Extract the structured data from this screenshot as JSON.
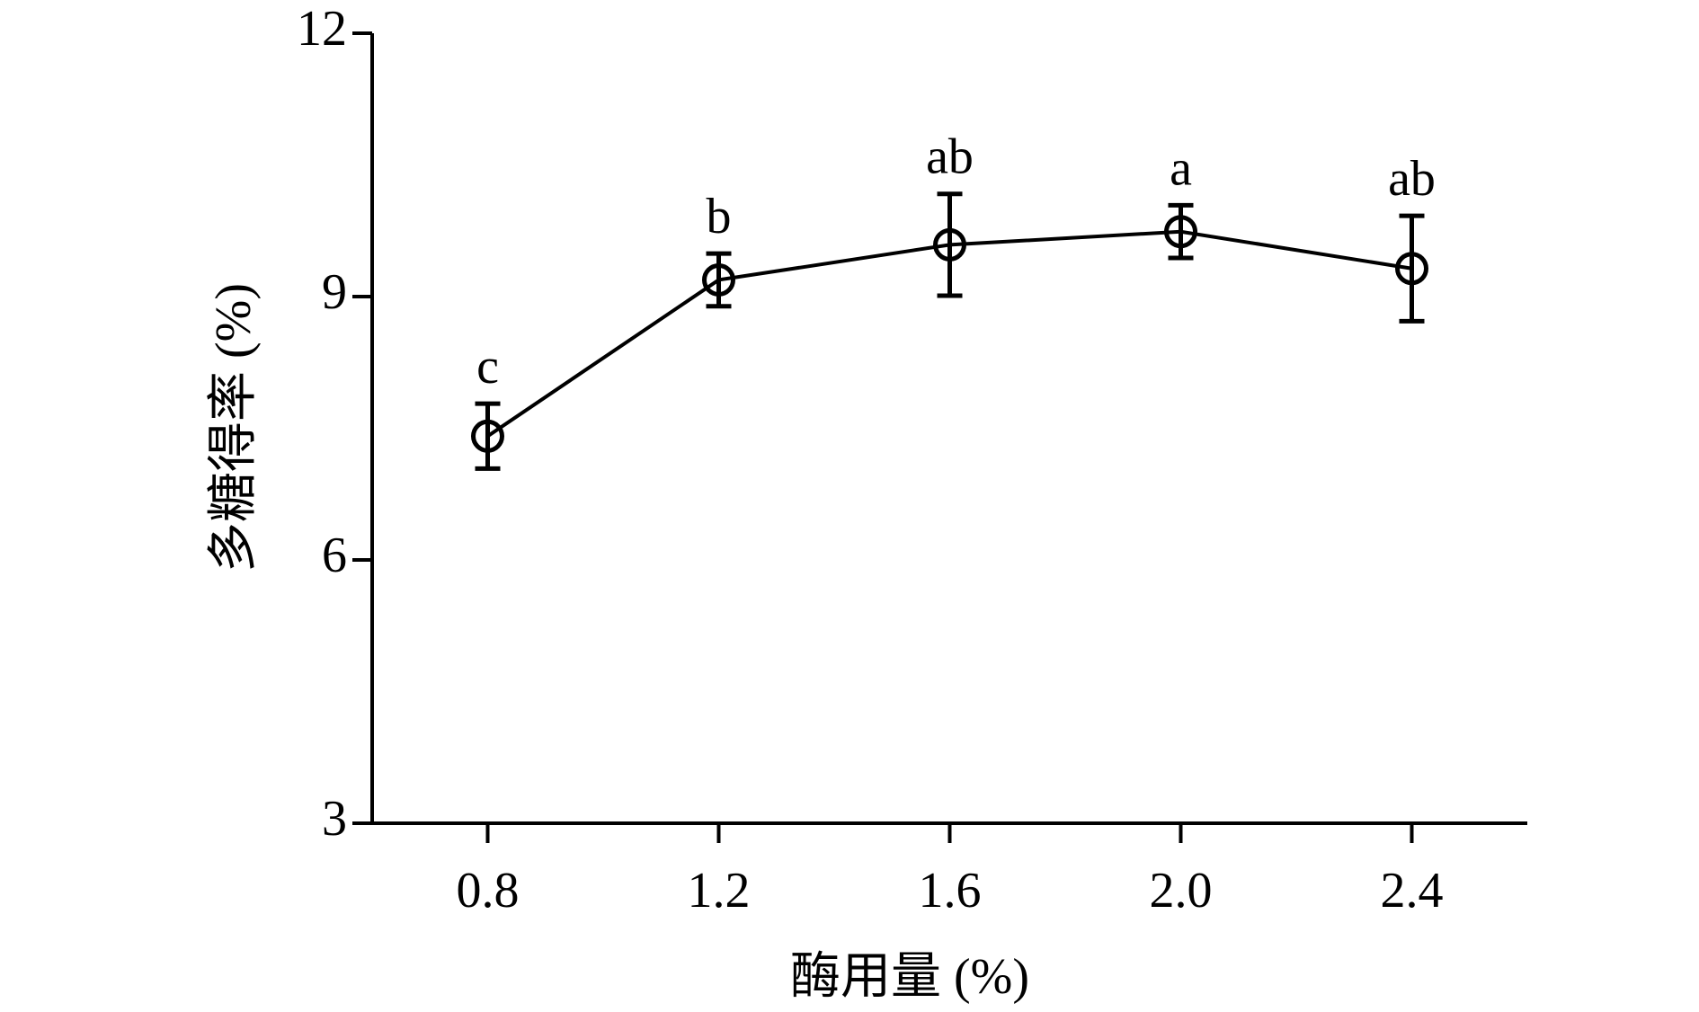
{
  "chart_data": {
    "type": "line",
    "xlabel": "酶用量 (%)",
    "ylabel": "多糖得率 (%)",
    "x": [
      0.8,
      1.2,
      1.6,
      2.0,
      2.4
    ],
    "series": [
      {
        "name": "多糖得率",
        "color": "#000000",
        "values": [
          7.41,
          9.19,
          9.59,
          9.74,
          9.32
        ],
        "errors": [
          0.37,
          0.3,
          0.58,
          0.3,
          0.6
        ],
        "annotations": [
          "c",
          "b",
          "ab",
          "a",
          "ab"
        ]
      }
    ],
    "xlim": [
      0.6,
      2.6
    ],
    "xticks": [
      0.8,
      1.2,
      1.6,
      {
        "value": 2,
        "label": "2.0"
      },
      2.4
    ],
    "ylim": [
      3,
      12
    ],
    "yticks": [
      3,
      6,
      9,
      12
    ],
    "grid": false
  }
}
